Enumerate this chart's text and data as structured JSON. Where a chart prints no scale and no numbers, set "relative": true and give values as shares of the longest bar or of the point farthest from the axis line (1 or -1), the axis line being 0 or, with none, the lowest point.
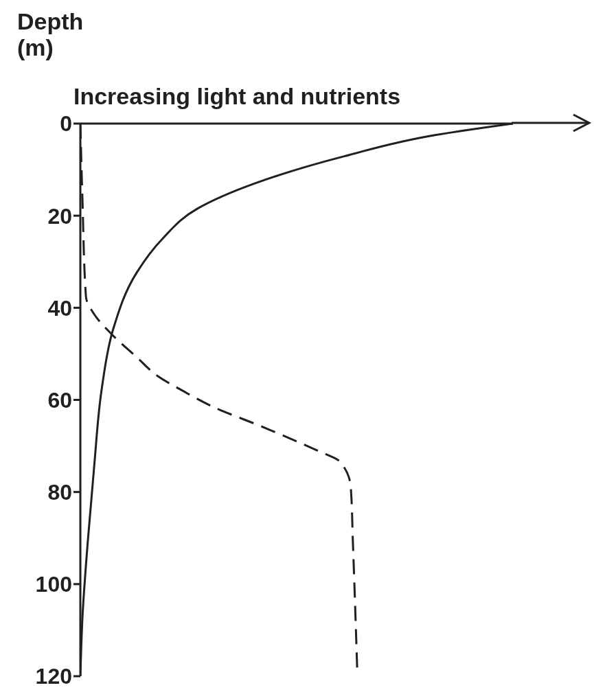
{
  "chart_data": {
    "type": "line",
    "xlabel": "Increasing light and nutrients",
    "ylabel": "Depth\n(m)",
    "orientation": "horizontal",
    "relative": true,
    "ylim": [
      120,
      0
    ],
    "yticks": [
      0,
      20,
      40,
      60,
      80,
      100,
      120
    ],
    "series": [
      {
        "color": "#231f20",
        "line_style": "solid",
        "x": [
          0,
          2.5,
          7.1,
          13.1,
          18.5,
          25,
          32.4,
          44.6,
          57.9,
          74.4,
          91,
          107,
          120
        ],
        "values": [
          1,
          0.82,
          0.61,
          0.4,
          0.27,
          0.19,
          0.13,
          0.076,
          0.049,
          0.032,
          0.017,
          0.005,
          0
        ]
      },
      {
        "color": "#231f20",
        "line_style": "dashed",
        "x": [
          0,
          17,
          37.6,
          41.4,
          45.8,
          50.7,
          54.9,
          58.2,
          61.2,
          66.2,
          71.1,
          73.4,
          78.9,
          91,
          118.6
        ],
        "values": [
          0,
          0.005,
          0.013,
          0.032,
          0.073,
          0.13,
          0.18,
          0.24,
          0.3,
          0.43,
          0.55,
          0.6,
          0.625,
          0.63,
          0.64
        ]
      }
    ]
  }
}
